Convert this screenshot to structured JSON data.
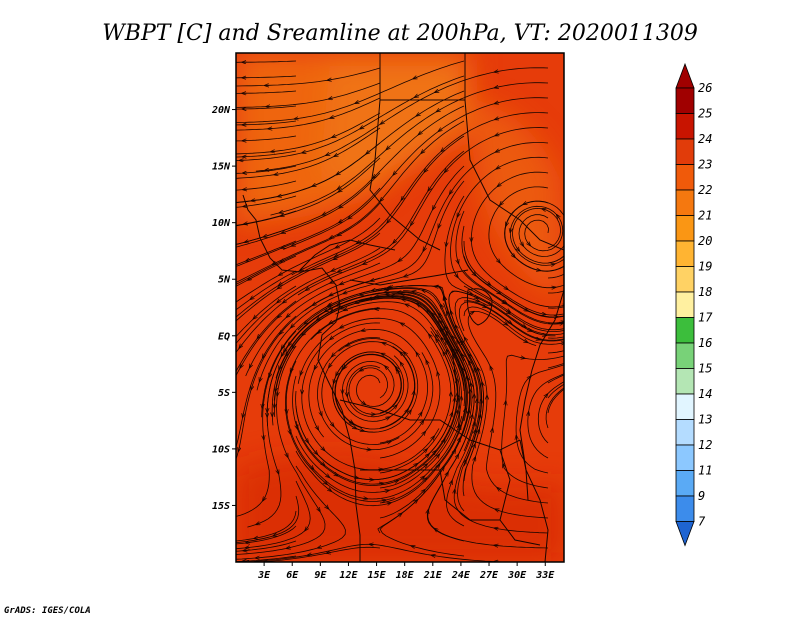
{
  "title": "WBPT [C] and Sreamline at 200hPa, VT: 2020011309",
  "credit": "GrADS: IGES/COLA",
  "map": {
    "lon_range": [
      0,
      35
    ],
    "lat_range": [
      -20,
      25
    ],
    "lat_ticks": [
      {
        "value": 20,
        "label": "20N"
      },
      {
        "value": 15,
        "label": "15N"
      },
      {
        "value": 10,
        "label": "10N"
      },
      {
        "value": 5,
        "label": "5N"
      },
      {
        "value": 0,
        "label": "EQ"
      },
      {
        "value": -5,
        "label": "5S"
      },
      {
        "value": -10,
        "label": "10S"
      },
      {
        "value": -15,
        "label": "15S"
      }
    ],
    "lon_ticks": [
      {
        "value": 3,
        "label": "3E"
      },
      {
        "value": 6,
        "label": "6E"
      },
      {
        "value": 9,
        "label": "9E"
      },
      {
        "value": 12,
        "label": "12E"
      },
      {
        "value": 15,
        "label": "15E"
      },
      {
        "value": 18,
        "label": "18E"
      },
      {
        "value": 21,
        "label": "21E"
      },
      {
        "value": 24,
        "label": "24E"
      },
      {
        "value": 27,
        "label": "27E"
      },
      {
        "value": 30,
        "label": "30E"
      },
      {
        "value": 33,
        "label": "33E"
      }
    ],
    "base_fill": "#e63c0a",
    "field_patches": [
      {
        "name": "sahel-warm-band",
        "color": "#ef6a12",
        "opacity": 0.9
      },
      {
        "name": "northeast-core",
        "color": "#f0781a",
        "opacity": 0.75
      },
      {
        "name": "east-plume",
        "color": "#ef6a12",
        "opacity": 0.65
      },
      {
        "name": "southern-core",
        "color": "#d42a06",
        "opacity": 0.6
      }
    ],
    "border_color": "#1a0500",
    "streamline_color": "#1a0500"
  },
  "colorbar": {
    "labels": [
      "26",
      "25",
      "24",
      "23",
      "22",
      "21",
      "20",
      "19",
      "18",
      "17",
      "16",
      "15",
      "14",
      "13",
      "12",
      "11",
      "9",
      "7"
    ],
    "colors": [
      "#a00000",
      "#c81400",
      "#e13c0a",
      "#f05a0a",
      "#f5780f",
      "#fa9614",
      "#ffb432",
      "#ffd264",
      "#fff0a0",
      "#3cbe3c",
      "#78d278",
      "#b4e6b4",
      "#e1f5ff",
      "#b4dcff",
      "#8cc8ff",
      "#5aaaf5",
      "#3c8ceb",
      "#1e64d2"
    ]
  }
}
